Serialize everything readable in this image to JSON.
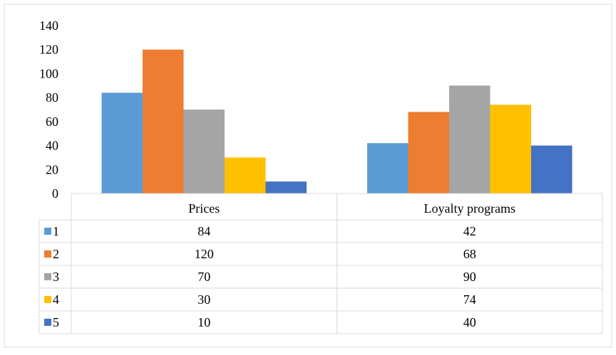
{
  "chart_data": {
    "type": "bar",
    "categories": [
      "Prices",
      "Loyalty programs"
    ],
    "series": [
      {
        "name": "1",
        "values": [
          84,
          42
        ],
        "color": "#5b9bd5"
      },
      {
        "name": "2",
        "values": [
          120,
          68
        ],
        "color": "#ed7d31"
      },
      {
        "name": "3",
        "values": [
          70,
          90
        ],
        "color": "#a5a5a5"
      },
      {
        "name": "4",
        "values": [
          30,
          74
        ],
        "color": "#ffc000"
      },
      {
        "name": "5",
        "values": [
          10,
          40
        ],
        "color": "#4472c4"
      }
    ],
    "yticks": [
      "0",
      "20",
      "40",
      "60",
      "80",
      "100",
      "120",
      "140"
    ],
    "ylim": [
      0,
      140
    ],
    "grid": false,
    "legend": "data-table-left",
    "table_values": [
      [
        "84",
        "42"
      ],
      [
        "120",
        "68"
      ],
      [
        "70",
        "90"
      ],
      [
        "30",
        "74"
      ],
      [
        "10",
        "40"
      ]
    ],
    "title": "",
    "xlabel": "",
    "ylabel": ""
  }
}
